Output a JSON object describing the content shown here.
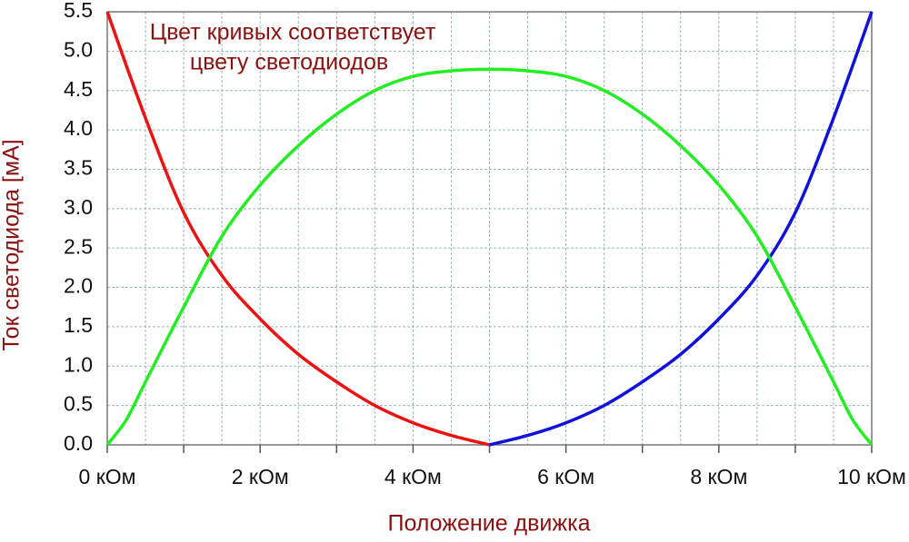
{
  "chart_data": {
    "type": "line",
    "annotations": [
      "Цвет кривых соответствует",
      "цвету светодиодов"
    ],
    "xlabel": "Положение движка",
    "ylabel": "Ток светодиода [мА]",
    "xlim": [
      0,
      10
    ],
    "ylim": [
      0,
      5.5
    ],
    "xticks": [
      {
        "value": 0,
        "label": "0 кОм"
      },
      {
        "value": 2,
        "label": "2 кОм"
      },
      {
        "value": 4,
        "label": "4 кОм"
      },
      {
        "value": 6,
        "label": "6 кОм"
      },
      {
        "value": 8,
        "label": "8 кОм"
      },
      {
        "value": 10,
        "label": "10 кОм"
      }
    ],
    "xminor": [
      1,
      3,
      5,
      7,
      9
    ],
    "xgrid": [
      0.5,
      1,
      1.5,
      2,
      2.5,
      3,
      3.5,
      4,
      4.5,
      5,
      5.5,
      6,
      6.5,
      7,
      7.5,
      8,
      8.5,
      9,
      9.5
    ],
    "yticks": [
      {
        "value": 0,
        "label": "0.0"
      },
      0.5,
      {
        "value": 1,
        "label": "1.0"
      },
      1.5,
      {
        "value": 2,
        "label": "2.0"
      },
      2.5,
      {
        "value": 3,
        "label": "3.0"
      },
      3.5,
      {
        "value": 4,
        "label": "4.0"
      },
      4.5,
      {
        "value": 5,
        "label": "5.0"
      },
      5.5
    ],
    "grid": true,
    "series": [
      {
        "color": "#ee1111",
        "x": [
          0,
          0.5,
          1,
          1.5,
          2,
          2.5,
          3,
          3.5,
          4,
          4.5,
          5
        ],
        "values": [
          5.5,
          4.15,
          2.95,
          2.15,
          1.6,
          1.15,
          0.8,
          0.5,
          0.28,
          0.12,
          0
        ]
      },
      {
        "color": "#1111dd",
        "x": [
          5,
          5.5,
          6,
          6.5,
          7,
          7.5,
          8,
          8.5,
          9,
          9.5,
          10
        ],
        "values": [
          0,
          0.12,
          0.28,
          0.5,
          0.8,
          1.15,
          1.6,
          2.15,
          2.95,
          4.15,
          5.5
        ]
      },
      {
        "color": "#22ee22",
        "x": [
          0,
          0.25,
          0.5,
          1,
          1.5,
          2,
          2.5,
          3,
          3.5,
          4,
          4.5,
          5,
          5.5,
          6,
          6.5,
          7,
          7.5,
          8,
          8.5,
          9,
          9.5,
          9.75,
          10
        ],
        "values": [
          0,
          0.32,
          0.8,
          1.75,
          2.65,
          3.3,
          3.8,
          4.2,
          4.5,
          4.68,
          4.75,
          4.77,
          4.75,
          4.68,
          4.5,
          4.2,
          3.8,
          3.3,
          2.65,
          1.75,
          0.8,
          0.32,
          0
        ]
      }
    ]
  }
}
